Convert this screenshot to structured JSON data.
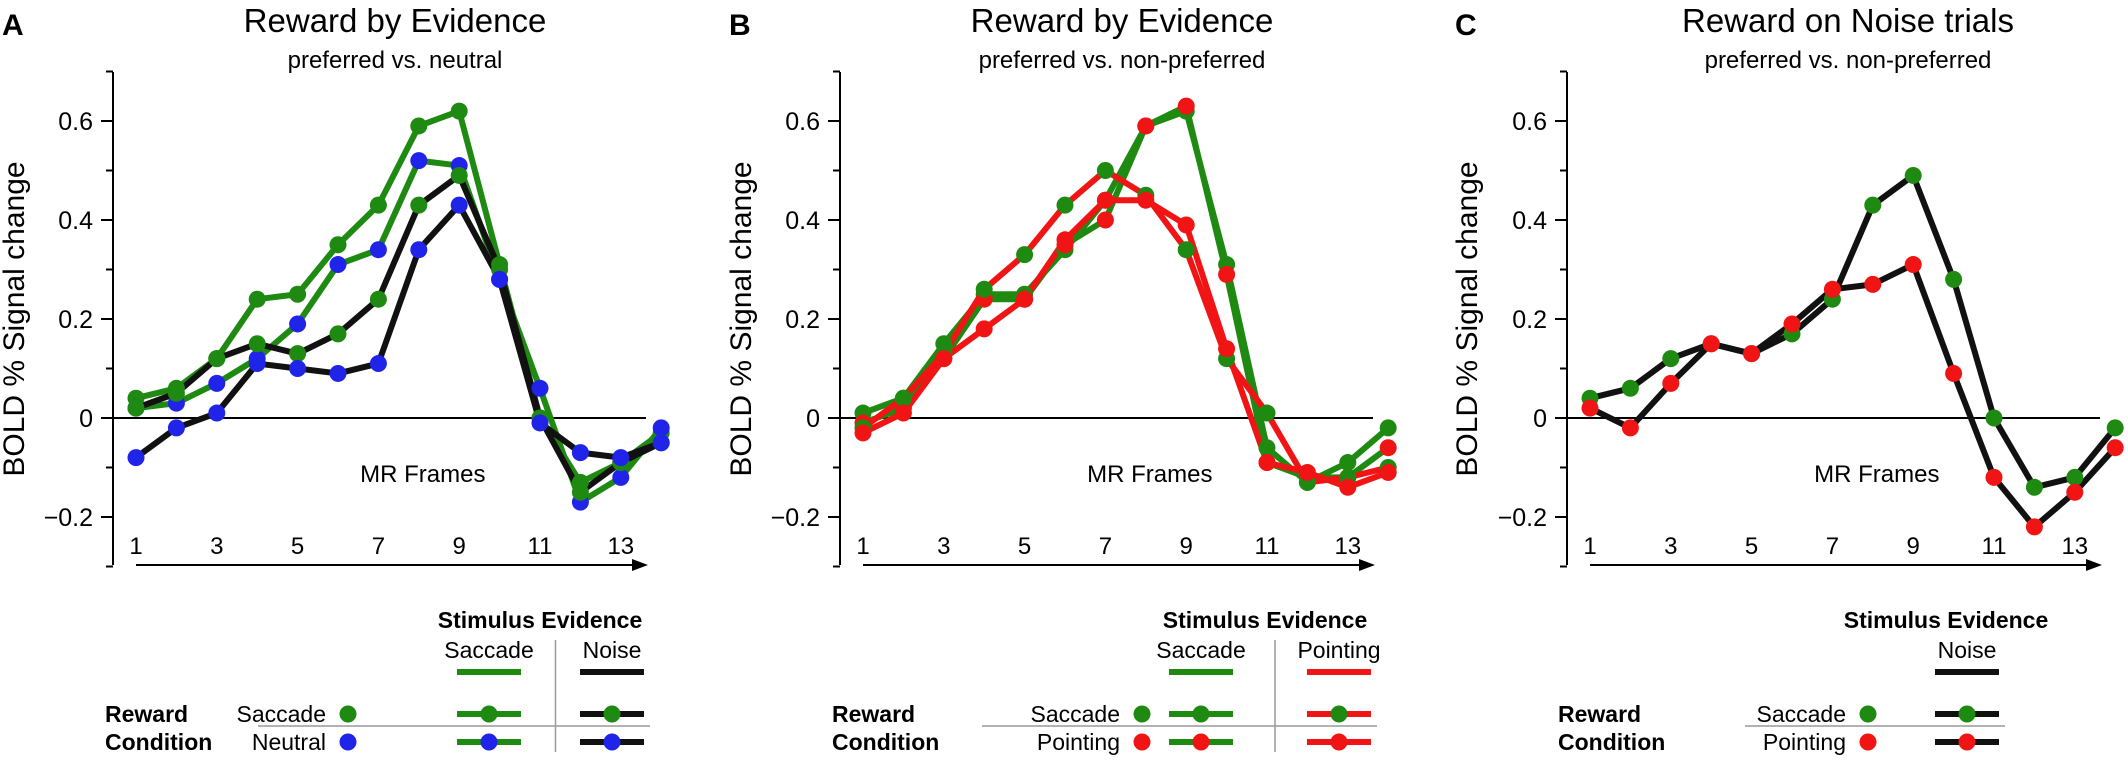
{
  "colors": {
    "saccade": "#1e8a12",
    "noise": "#111111",
    "neutral": "#1f24e8",
    "pointing": "#f01414",
    "axis": "#000000"
  },
  "ylabel": "BOLD % Signal change",
  "xlabel": "MR Frames",
  "y_ticks": [
    "0.6",
    "0.4",
    "0.2",
    "0",
    "−0.2"
  ],
  "x_ticks": [
    "1",
    "3",
    "5",
    "7",
    "9",
    "11",
    "13"
  ],
  "legend_common": {
    "title": "Stimulus Evidence",
    "row_title_line1": "Reward",
    "row_title_line2": "Condition",
    "saccade": "Saccade",
    "noise": "Noise",
    "neutral": "Neutral",
    "pointing": "Pointing"
  },
  "chart_data": [
    {
      "panel": "A",
      "type": "line",
      "title": "Reward by Evidence",
      "subtitle": "preferred vs. neutral",
      "xlabel": "MR Frames",
      "ylabel": "BOLD % Signal change",
      "ylim": [
        -0.3,
        0.7
      ],
      "x": [
        1,
        2,
        3,
        4,
        5,
        6,
        7,
        8,
        9,
        10,
        11,
        12,
        13,
        14
      ],
      "series": [
        {
          "evidence": "Saccade",
          "reward": "Saccade",
          "line_color": "saccade",
          "marker_color": "saccade",
          "values": [
            0.04,
            0.06,
            0.12,
            0.24,
            0.25,
            0.35,
            0.43,
            0.59,
            0.62,
            0.31,
            0.0,
            -0.13,
            -0.09,
            -0.03
          ]
        },
        {
          "evidence": "Saccade",
          "reward": "Neutral",
          "line_color": "saccade",
          "marker_color": "neutral",
          "values": [
            0.02,
            0.03,
            0.07,
            0.12,
            0.19,
            0.31,
            0.34,
            0.52,
            0.51,
            0.28,
            0.06,
            -0.17,
            -0.12,
            -0.02
          ]
        },
        {
          "evidence": "Noise",
          "reward": "Saccade",
          "line_color": "noise",
          "marker_color": "saccade",
          "values": [
            0.02,
            0.05,
            0.12,
            0.15,
            0.13,
            0.17,
            0.24,
            0.43,
            0.49,
            0.3,
            0.0,
            -0.15,
            -0.09,
            -0.05
          ]
        },
        {
          "evidence": "Noise",
          "reward": "Neutral",
          "line_color": "noise",
          "marker_color": "neutral",
          "values": [
            -0.08,
            -0.02,
            0.01,
            0.11,
            0.1,
            0.09,
            0.11,
            0.34,
            0.43,
            0.28,
            -0.01,
            -0.07,
            -0.08,
            -0.05
          ]
        }
      ]
    },
    {
      "panel": "B",
      "type": "line",
      "title": "Reward by Evidence",
      "subtitle": "preferred vs. non-preferred",
      "xlabel": "MR Frames",
      "ylabel": "BOLD % Signal change",
      "ylim": [
        -0.3,
        0.7
      ],
      "x": [
        1,
        2,
        3,
        4,
        5,
        6,
        7,
        8,
        9,
        10,
        11,
        12,
        13,
        14
      ],
      "series": [
        {
          "evidence": "Saccade",
          "reward": "Saccade",
          "line_color": "saccade",
          "marker_color": "saccade",
          "values": [
            0.01,
            0.04,
            0.15,
            0.25,
            0.25,
            0.34,
            0.44,
            0.59,
            0.62,
            0.31,
            -0.06,
            -0.13,
            -0.09,
            -0.02
          ]
        },
        {
          "evidence": "Saccade",
          "reward": "Pointing",
          "line_color": "saccade",
          "marker_color": "pointing",
          "values": [
            -0.01,
            0.02,
            0.12,
            0.24,
            0.24,
            0.35,
            0.4,
            0.59,
            0.63,
            0.29,
            -0.09,
            -0.12,
            -0.12,
            -0.06
          ]
        },
        {
          "evidence": "Pointing",
          "reward": "Saccade",
          "line_color": "pointing",
          "marker_color": "saccade",
          "values": [
            -0.02,
            0.04,
            0.13,
            0.26,
            0.33,
            0.43,
            0.5,
            0.45,
            0.34,
            0.12,
            0.01,
            -0.13,
            -0.12,
            -0.1
          ]
        },
        {
          "evidence": "Pointing",
          "reward": "Pointing",
          "line_color": "pointing",
          "marker_color": "pointing",
          "values": [
            -0.03,
            0.01,
            0.12,
            0.18,
            0.24,
            0.36,
            0.44,
            0.44,
            0.39,
            0.14,
            -0.09,
            -0.11,
            -0.14,
            -0.11
          ]
        }
      ]
    },
    {
      "panel": "C",
      "type": "line",
      "title": "Reward on Noise trials",
      "subtitle": "preferred vs. non-preferred",
      "xlabel": "MR Frames",
      "ylabel": "BOLD % Signal change",
      "ylim": [
        -0.3,
        0.7
      ],
      "x": [
        1,
        2,
        3,
        4,
        5,
        6,
        7,
        8,
        9,
        10,
        11,
        12,
        13,
        14
      ],
      "series": [
        {
          "evidence": "Noise",
          "reward": "Saccade",
          "line_color": "noise",
          "marker_color": "saccade",
          "values": [
            0.04,
            0.06,
            0.12,
            0.15,
            0.13,
            0.17,
            0.24,
            0.43,
            0.49,
            0.28,
            0.0,
            -0.14,
            -0.12,
            -0.02
          ]
        },
        {
          "evidence": "Noise",
          "reward": "Pointing",
          "line_color": "noise",
          "marker_color": "pointing",
          "values": [
            0.02,
            -0.02,
            0.07,
            0.15,
            0.13,
            0.19,
            0.26,
            0.27,
            0.31,
            0.09,
            -0.12,
            -0.22,
            -0.15,
            -0.06
          ]
        }
      ]
    }
  ],
  "legends": [
    {
      "evidence": [
        "saccade",
        "noise"
      ],
      "rewards": [
        "saccade",
        "neutral"
      ]
    },
    {
      "evidence": [
        "saccade",
        "pointing"
      ],
      "rewards": [
        "saccade",
        "pointing"
      ]
    },
    {
      "evidence": [
        "noise"
      ],
      "rewards": [
        "saccade",
        "pointing"
      ]
    }
  ]
}
